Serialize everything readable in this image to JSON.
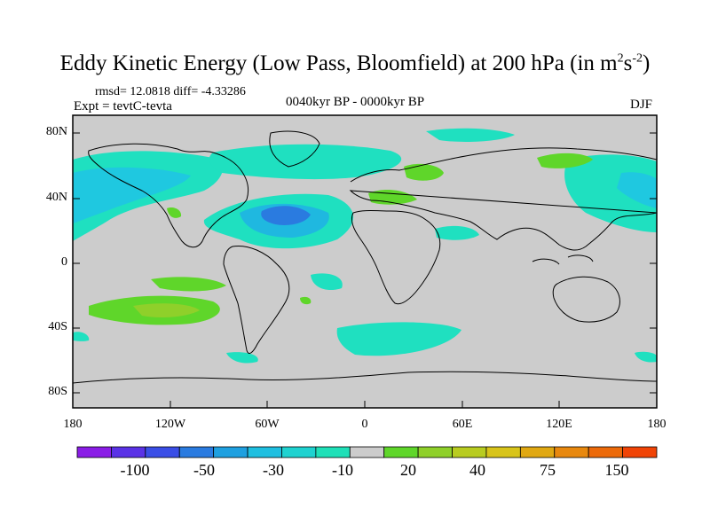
{
  "title": {
    "main": "Eddy Kinetic Energy (Low Pass, Bloomfield) at 200 hPa (in m",
    "sup1": "2",
    "mid": "s",
    "sup2": "-2",
    "end": ")"
  },
  "stats": "rmsd= 12.0818 diff= -4.33286",
  "experiment": "Expt = tevtC-tevta",
  "period": "0040kyr BP - 0000kyr BP",
  "season": "DJF",
  "lat_ticks": [
    "80N",
    "40N",
    "0",
    "40S",
    "80S"
  ],
  "lon_ticks": [
    "180",
    "120W",
    "60W",
    "0",
    "60E",
    "120E",
    "180"
  ],
  "colorbar": {
    "labels": [
      "-100",
      "-50",
      "-30",
      "-10",
      "20",
      "40",
      "75",
      "150"
    ],
    "colors": [
      "#8a1de6",
      "#5a32e6",
      "#3a4ee6",
      "#2a7be0",
      "#1fa0e0",
      "#1fbfe0",
      "#1fd2d0",
      "#1fe0b8",
      "#cccccc",
      "#5fd62a",
      "#8fd02a",
      "#b8cc20",
      "#d8c41a",
      "#e0a812",
      "#e8880e",
      "#ec6a0a",
      "#f04406"
    ]
  },
  "land_color": "#cccccc",
  "ocean_color": "#cccccc"
}
